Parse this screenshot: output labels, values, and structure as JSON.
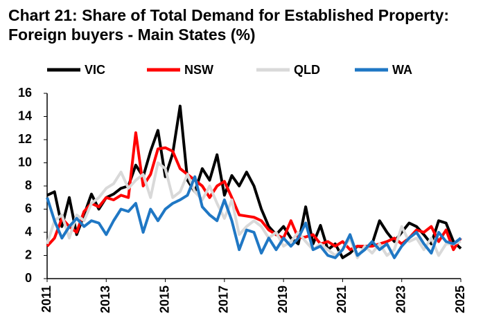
{
  "chart_data": {
    "type": "line",
    "title": "Chart 21: Share of Total Demand for Established Property: Foreign buyers - Main States (%)",
    "x": [
      2011,
      2011.25,
      2011.5,
      2011.75,
      2012,
      2012.25,
      2012.5,
      2012.75,
      2013,
      2013.25,
      2013.5,
      2013.75,
      2014,
      2014.25,
      2014.5,
      2014.75,
      2015,
      2015.25,
      2015.5,
      2015.75,
      2016,
      2016.25,
      2016.5,
      2016.75,
      2017,
      2017.25,
      2017.5,
      2017.75,
      2018,
      2018.25,
      2018.5,
      2018.75,
      2019,
      2019.25,
      2019.5,
      2019.75,
      2020,
      2020.25,
      2020.5,
      2020.75,
      2021,
      2021.25,
      2021.5,
      2021.75,
      2022,
      2022.25,
      2022.5,
      2022.75,
      2023,
      2023.25,
      2023.5,
      2023.75,
      2024,
      2024.25,
      2024.5,
      2024.75,
      2025
    ],
    "series": [
      {
        "name": "VIC",
        "color": "#000000",
        "values": [
          7.2,
          7.5,
          4.5,
          7.0,
          3.8,
          5.5,
          7.3,
          6.0,
          7.0,
          7.3,
          7.8,
          8.0,
          9.8,
          8.8,
          11.0,
          12.8,
          8.8,
          10.8,
          14.9,
          8.5,
          7.5,
          9.5,
          8.5,
          10.7,
          7.2,
          8.9,
          8.0,
          9.2,
          8.0,
          6.0,
          4.5,
          3.8,
          4.5,
          3.5,
          3.0,
          6.2,
          3.0,
          4.6,
          2.5,
          3.0,
          1.8,
          2.2,
          2.8,
          2.7,
          3.0,
          5.0,
          4.0,
          3.2,
          4.0,
          4.8,
          4.5,
          3.8,
          3.0,
          5.0,
          4.8,
          3.2,
          2.6
        ]
      },
      {
        "name": "NSW",
        "color": "#ff0000",
        "values": [
          2.8,
          3.5,
          5.2,
          4.5,
          4.0,
          5.8,
          6.5,
          6.2,
          7.0,
          6.8,
          7.2,
          7.0,
          12.6,
          8.0,
          9.0,
          11.2,
          11.3,
          11.0,
          9.5,
          9.0,
          8.5,
          8.0,
          7.0,
          8.0,
          8.4,
          7.0,
          5.5,
          5.4,
          5.3,
          5.0,
          4.2,
          3.8,
          3.5,
          5.0,
          3.5,
          3.6,
          3.8,
          3.0,
          3.2,
          2.8,
          3.2,
          2.5,
          2.8,
          2.8,
          2.8,
          3.0,
          3.2,
          3.5,
          3.0,
          3.5,
          4.2,
          4.0,
          4.5,
          3.2,
          4.2,
          2.5,
          3.5
        ]
      },
      {
        "name": "QLD",
        "color": "#d9d9d9",
        "values": [
          3.0,
          5.0,
          5.5,
          3.5,
          5.5,
          5.0,
          6.5,
          7.0,
          7.8,
          8.2,
          9.2,
          7.8,
          8.5,
          9.0,
          7.0,
          10.0,
          9.5,
          7.0,
          7.5,
          9.0,
          7.5,
          6.8,
          8.0,
          6.5,
          5.2,
          6.8,
          3.8,
          4.5,
          5.0,
          4.5,
          3.5,
          4.0,
          2.8,
          3.2,
          4.0,
          3.2,
          2.5,
          3.0,
          2.5,
          2.0,
          2.5,
          3.5,
          1.8,
          2.8,
          2.2,
          3.0,
          2.0,
          2.5,
          4.5,
          3.2,
          3.5,
          2.5,
          3.5,
          2.0,
          3.0,
          3.0,
          3.2
        ]
      },
      {
        "name": "WA",
        "color": "#1f77c4",
        "values": [
          7.0,
          5.0,
          3.5,
          4.5,
          5.2,
          4.5,
          5.0,
          4.8,
          3.8,
          5.0,
          6.0,
          5.8,
          6.5,
          4.0,
          6.0,
          5.0,
          6.0,
          6.5,
          6.8,
          7.2,
          8.8,
          6.2,
          5.5,
          5.0,
          6.8,
          5.0,
          2.5,
          4.2,
          4.0,
          2.2,
          3.5,
          2.5,
          3.5,
          2.8,
          3.5,
          4.8,
          2.5,
          2.8,
          2.0,
          1.8,
          2.5,
          3.8,
          2.0,
          2.5,
          3.2,
          2.5,
          3.0,
          1.8,
          2.8,
          3.5,
          4.0,
          3.0,
          2.2,
          4.0,
          3.2,
          3.0,
          3.5
        ]
      }
    ],
    "xlim": [
      2011,
      2025
    ],
    "xticks": [
      2011,
      2013,
      2015,
      2017,
      2019,
      2021,
      2023,
      2025
    ],
    "ylim": [
      0,
      16
    ],
    "yticks": [
      0,
      2,
      4,
      6,
      8,
      10,
      12,
      14,
      16
    ],
    "grid": false,
    "legend": "top"
  }
}
